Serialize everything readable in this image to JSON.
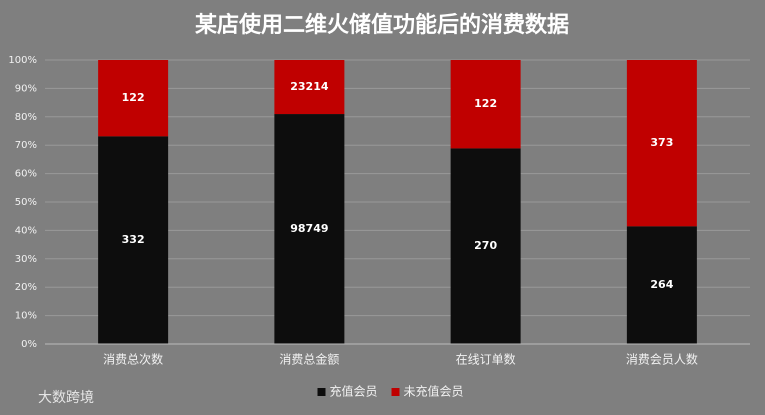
{
  "chart_data": {
    "type": "bar",
    "stacking": "percent",
    "title": "某店使用二维火储值功能后的消费数据",
    "categories": [
      "消费总次数",
      "消费总金额",
      "在线订单数",
      "消费会员人数"
    ],
    "series": [
      {
        "name": "充值会员",
        "color": "#0d0d0d",
        "values": [
          332,
          98749,
          270,
          264
        ]
      },
      {
        "name": "未充值会员",
        "color": "#c00000",
        "values": [
          122,
          23214,
          122,
          373
        ]
      }
    ],
    "ylim": [
      0,
      100
    ],
    "yticks": [
      {
        "value": 0,
        "label": "0%"
      },
      {
        "value": 10,
        "label": "10%"
      },
      {
        "value": 20,
        "label": "20%"
      },
      {
        "value": 30,
        "label": "30%"
      },
      {
        "value": 40,
        "label": "40%"
      },
      {
        "value": 50,
        "label": "50%"
      },
      {
        "value": 60,
        "label": "60%"
      },
      {
        "value": 70,
        "label": "70%"
      },
      {
        "value": 80,
        "label": "80%"
      },
      {
        "value": 90,
        "label": "90%"
      },
      {
        "value": 100,
        "label": "100%"
      }
    ],
    "grid": true,
    "legend": "bottom",
    "watermark": "大数跨境"
  }
}
